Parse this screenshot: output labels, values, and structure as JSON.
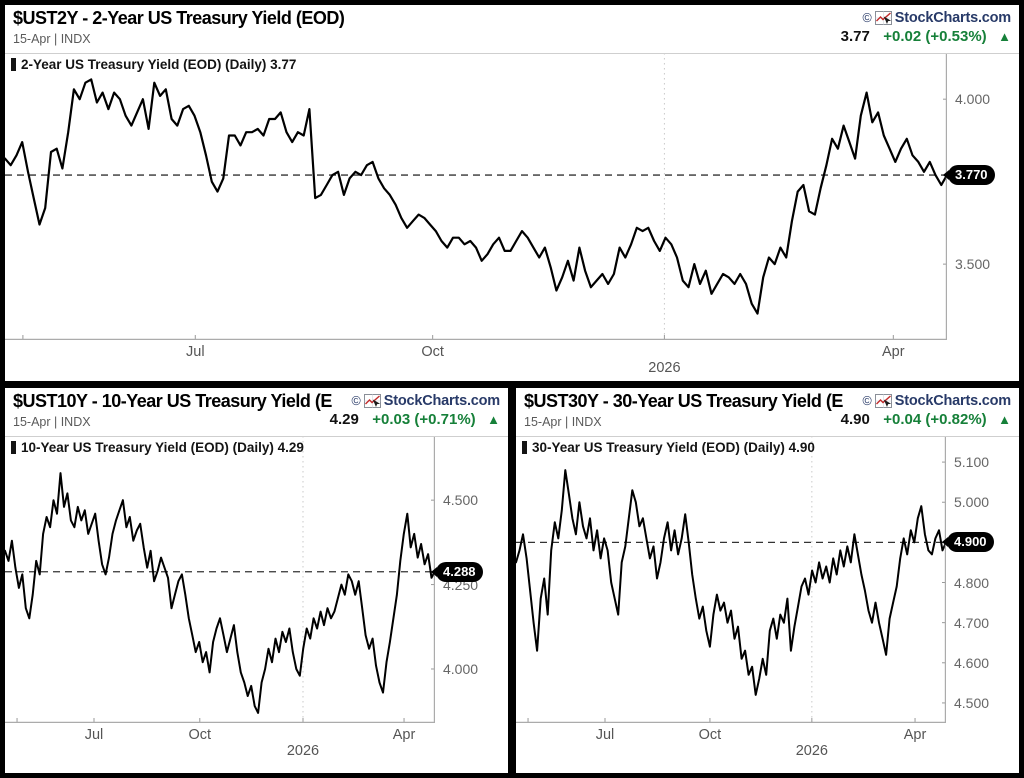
{
  "brand": {
    "copyright": "©",
    "name": "StockCharts.com"
  },
  "colors": {
    "brand_navy": "#283a68",
    "gain_green": "#168039",
    "line_black": "#000000",
    "axis_gray": "#666666"
  },
  "panels": [
    {
      "symbol": "$UST2Y",
      "title": "$UST2Y - 2-Year US Treasury Yield (EOD)",
      "subtitle": "15-Apr | INDX",
      "quote": {
        "last": "3.77",
        "change": "+0.02 (+0.53%)",
        "direction": "▲"
      },
      "legend": "2-Year US Treasury Yield (EOD) (Daily) 3.77",
      "price_label": "3.770"
    },
    {
      "symbol": "$UST10Y",
      "title": "$UST10Y - 10-Year US Treasury Yield (E",
      "subtitle": "15-Apr | INDX",
      "quote": {
        "last": "4.29",
        "change": "+0.03 (+0.71%)",
        "direction": "▲"
      },
      "legend": "10-Year US Treasury Yield (EOD) (Daily) 4.29",
      "price_label": "4.288"
    },
    {
      "symbol": "$UST30Y",
      "title": "$UST30Y - 30-Year US Treasury Yield (E",
      "subtitle": "15-Apr | INDX",
      "quote": {
        "last": "4.90",
        "change": "+0.04 (+0.82%)",
        "direction": "▲"
      },
      "legend": "30-Year US Treasury Yield (EOD) (Daily) 4.90",
      "price_label": "4.900"
    }
  ],
  "chart_data": [
    {
      "type": "line",
      "title": "2-Year US Treasury Yield (EOD) (Daily) 3.77",
      "ylim": [
        3.27,
        4.14
      ],
      "y_ticks": [
        {
          "v": 4.0,
          "label": "4.000"
        },
        {
          "v": 3.5,
          "label": "3.500"
        }
      ],
      "x_ticks": [
        {
          "label": "",
          "f": 0.019
        },
        {
          "label": "Jul",
          "f": 0.202
        },
        {
          "label": "Oct",
          "f": 0.454
        },
        {
          "label": "2026",
          "f": 0.7,
          "year": true
        },
        {
          "label": "Apr",
          "f": 0.943
        }
      ],
      "last_value": 3.77,
      "last_label": "3.770",
      "legend_position": "top-left",
      "grid": "year-dotted-only",
      "series": [
        {
          "name": "2-Year US Treasury Yield (EOD)",
          "values": [
            3.82,
            3.8,
            3.83,
            3.87,
            3.78,
            3.7,
            3.62,
            3.67,
            3.84,
            3.85,
            3.79,
            3.9,
            4.03,
            4.0,
            4.05,
            4.06,
            3.99,
            4.02,
            3.97,
            4.02,
            4.0,
            3.95,
            3.92,
            3.96,
            4.0,
            3.91,
            4.05,
            4.01,
            4.03,
            3.94,
            3.92,
            3.97,
            3.98,
            3.95,
            3.9,
            3.83,
            3.75,
            3.72,
            3.76,
            3.89,
            3.89,
            3.86,
            3.9,
            3.9,
            3.91,
            3.89,
            3.94,
            3.94,
            3.96,
            3.9,
            3.87,
            3.9,
            3.89,
            3.97,
            3.7,
            3.71,
            3.74,
            3.77,
            3.78,
            3.71,
            3.76,
            3.78,
            3.77,
            3.8,
            3.81,
            3.76,
            3.73,
            3.71,
            3.68,
            3.64,
            3.61,
            3.63,
            3.65,
            3.64,
            3.62,
            3.6,
            3.57,
            3.55,
            3.58,
            3.58,
            3.56,
            3.57,
            3.55,
            3.51,
            3.53,
            3.56,
            3.58,
            3.54,
            3.54,
            3.57,
            3.6,
            3.58,
            3.55,
            3.52,
            3.55,
            3.49,
            3.42,
            3.46,
            3.51,
            3.45,
            3.55,
            3.48,
            3.43,
            3.45,
            3.47,
            3.44,
            3.47,
            3.55,
            3.52,
            3.56,
            3.61,
            3.6,
            3.61,
            3.57,
            3.54,
            3.58,
            3.56,
            3.52,
            3.45,
            3.43,
            3.5,
            3.44,
            3.48,
            3.41,
            3.44,
            3.47,
            3.46,
            3.44,
            3.47,
            3.44,
            3.38,
            3.35,
            3.46,
            3.52,
            3.5,
            3.55,
            3.52,
            3.63,
            3.72,
            3.74,
            3.66,
            3.65,
            3.73,
            3.8,
            3.88,
            3.85,
            3.92,
            3.87,
            3.82,
            3.95,
            4.02,
            3.93,
            3.96,
            3.89,
            3.85,
            3.81,
            3.85,
            3.88,
            3.83,
            3.81,
            3.78,
            3.81,
            3.77,
            3.74,
            3.77
          ]
        }
      ]
    },
    {
      "type": "line",
      "title": "10-Year US Treasury Yield (EOD) (Daily) 4.29",
      "ylim": [
        3.84,
        4.69
      ],
      "y_ticks": [
        {
          "v": 4.5,
          "label": "4.500"
        },
        {
          "v": 4.25,
          "label": "4.250"
        },
        {
          "v": 4.0,
          "label": "4.000"
        }
      ],
      "x_ticks": [
        {
          "label": "",
          "f": 0.028
        },
        {
          "label": "Jul",
          "f": 0.207
        },
        {
          "label": "Oct",
          "f": 0.453
        },
        {
          "label": "2026",
          "f": 0.693,
          "year": true
        },
        {
          "label": "Apr",
          "f": 0.928
        }
      ],
      "last_value": 4.288,
      "last_label": "4.288",
      "legend_position": "top-left",
      "grid": "year-dotted-only",
      "series": [
        {
          "name": "10-Year US Treasury Yield (EOD)",
          "values": [
            4.35,
            4.32,
            4.38,
            4.3,
            4.24,
            4.28,
            4.18,
            4.15,
            4.22,
            4.32,
            4.28,
            4.4,
            4.45,
            4.42,
            4.5,
            4.46,
            4.58,
            4.48,
            4.52,
            4.44,
            4.42,
            4.48,
            4.44,
            4.47,
            4.4,
            4.43,
            4.46,
            4.38,
            4.31,
            4.28,
            4.33,
            4.4,
            4.44,
            4.47,
            4.5,
            4.42,
            4.45,
            4.38,
            4.41,
            4.43,
            4.36,
            4.3,
            4.35,
            4.26,
            4.29,
            4.33,
            4.3,
            4.27,
            4.18,
            4.22,
            4.26,
            4.28,
            4.22,
            4.15,
            4.1,
            4.05,
            4.08,
            4.02,
            4.05,
            3.99,
            4.08,
            4.12,
            4.15,
            4.1,
            4.05,
            4.09,
            4.13,
            4.05,
            3.99,
            3.96,
            3.92,
            3.95,
            3.89,
            3.87,
            3.96,
            4.0,
            4.06,
            4.02,
            4.09,
            4.05,
            4.11,
            4.08,
            4.12,
            4.05,
            4.0,
            3.98,
            4.06,
            4.12,
            4.09,
            4.15,
            4.12,
            4.17,
            4.13,
            4.18,
            4.15,
            4.17,
            4.21,
            4.25,
            4.22,
            4.28,
            4.26,
            4.22,
            4.26,
            4.18,
            4.1,
            4.06,
            4.09,
            4.01,
            3.96,
            3.93,
            4.02,
            4.08,
            4.15,
            4.22,
            4.32,
            4.4,
            4.46,
            4.36,
            4.4,
            4.33,
            4.37,
            4.31,
            4.34,
            4.27,
            4.29
          ]
        }
      ]
    },
    {
      "type": "line",
      "title": "30-Year US Treasury Yield (EOD) (Daily) 4.90",
      "ylim": [
        4.45,
        5.165
      ],
      "y_ticks": [
        {
          "v": 5.1,
          "label": "5.100"
        },
        {
          "v": 5.0,
          "label": "5.000"
        },
        {
          "v": 4.9,
          "label": ""
        },
        {
          "v": 4.8,
          "label": "4.800"
        },
        {
          "v": 4.7,
          "label": "4.700"
        },
        {
          "v": 4.6,
          "label": "4.600"
        },
        {
          "v": 4.5,
          "label": "4.500"
        }
      ],
      "x_ticks": [
        {
          "label": "",
          "f": 0.028
        },
        {
          "label": "Jul",
          "f": 0.207
        },
        {
          "label": "Oct",
          "f": 0.451
        },
        {
          "label": "2026",
          "f": 0.688,
          "year": true
        },
        {
          "label": "Apr",
          "f": 0.928
        }
      ],
      "last_value": 4.9,
      "last_label": "4.900",
      "legend_position": "top-left",
      "grid": "year-dotted-only",
      "series": [
        {
          "name": "30-Year US Treasury Yield (EOD)",
          "values": [
            4.85,
            4.88,
            4.92,
            4.86,
            4.78,
            4.7,
            4.63,
            4.76,
            4.81,
            4.72,
            4.88,
            4.95,
            4.91,
            4.98,
            5.08,
            5.02,
            4.96,
            4.92,
            5.0,
            4.94,
            4.91,
            4.96,
            4.88,
            4.93,
            4.86,
            4.91,
            4.88,
            4.8,
            4.76,
            4.72,
            4.85,
            4.89,
            4.96,
            5.03,
            5.0,
            4.94,
            4.96,
            4.91,
            4.86,
            4.89,
            4.81,
            4.85,
            4.91,
            4.95,
            4.88,
            4.93,
            4.87,
            4.91,
            4.97,
            4.9,
            4.82,
            4.76,
            4.71,
            4.74,
            4.68,
            4.64,
            4.72,
            4.77,
            4.73,
            4.75,
            4.7,
            4.73,
            4.66,
            4.69,
            4.61,
            4.63,
            4.57,
            4.59,
            4.52,
            4.56,
            4.61,
            4.57,
            4.68,
            4.71,
            4.66,
            4.72,
            4.7,
            4.76,
            4.63,
            4.69,
            4.74,
            4.79,
            4.81,
            4.77,
            4.83,
            4.8,
            4.85,
            4.81,
            4.84,
            4.8,
            4.86,
            4.82,
            4.88,
            4.84,
            4.89,
            4.85,
            4.92,
            4.87,
            4.82,
            4.78,
            4.73,
            4.7,
            4.75,
            4.7,
            4.66,
            4.62,
            4.71,
            4.75,
            4.79,
            4.86,
            4.91,
            4.87,
            4.93,
            4.9,
            4.96,
            4.99,
            4.92,
            4.88,
            4.87,
            4.91,
            4.93,
            4.88,
            4.9
          ]
        }
      ]
    }
  ]
}
